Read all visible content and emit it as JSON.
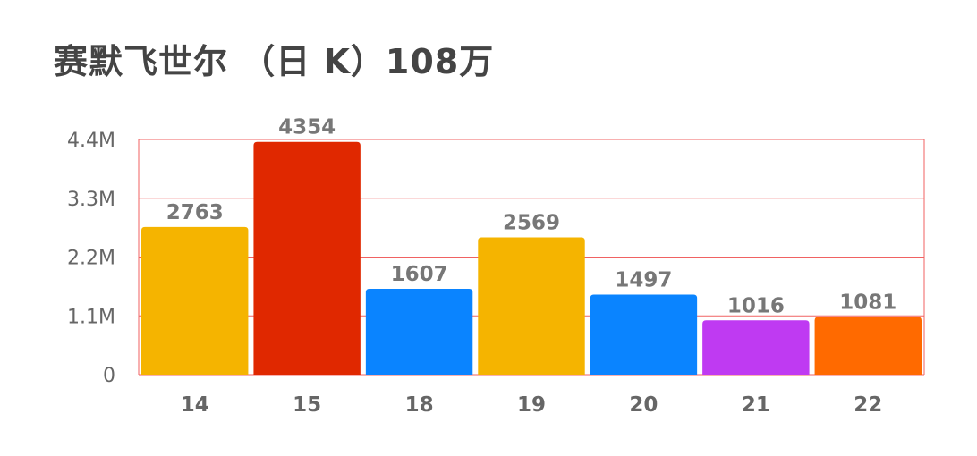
{
  "chart_data": {
    "type": "bar",
    "title": "赛默飞世尔 （日 K）108万",
    "categories": [
      "14",
      "15",
      "18",
      "19",
      "20",
      "21",
      "22"
    ],
    "values": [
      2763,
      4354,
      1607,
      2569,
      1497,
      1016,
      1081
    ],
    "data_labels": [
      "2763",
      "4354",
      "1607",
      "2569",
      "1497",
      "1016",
      "1081"
    ],
    "value_unit_multiplier": 1000,
    "y_ticks": [
      0,
      1100,
      2200,
      3300,
      4400
    ],
    "y_tick_labels": [
      "0",
      "1.1M",
      "2.2M",
      "3.3M",
      "4.4M"
    ],
    "ylim": [
      0,
      4400
    ],
    "xlabel": "",
    "ylabel": "",
    "grid": true,
    "grid_color": "#f06262",
    "bar_colors": [
      "#f5b400",
      "#e02800",
      "#0a84ff",
      "#f5b400",
      "#0a84ff",
      "#bf3af2",
      "#ff6a00"
    ]
  }
}
